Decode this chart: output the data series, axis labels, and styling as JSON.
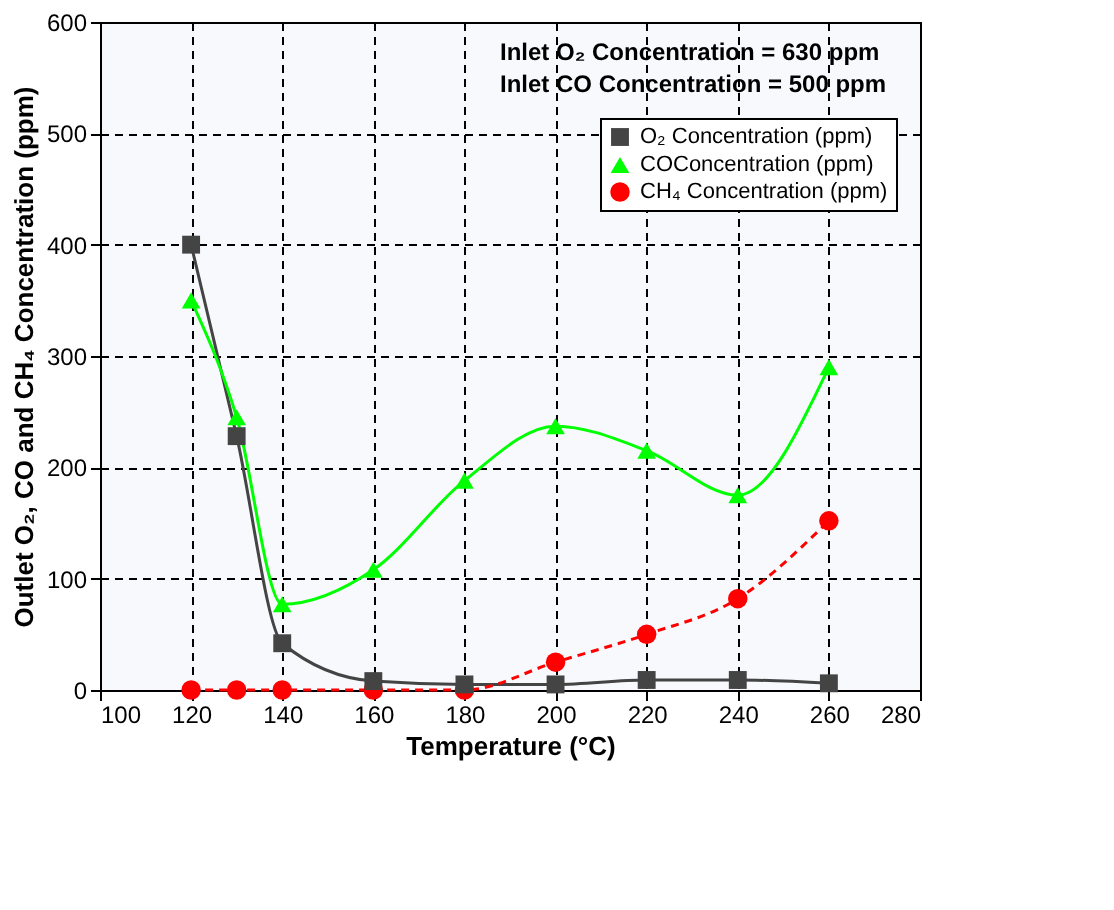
{
  "chart_data": {
    "type": "line",
    "xlabel": "Temperature (°C)",
    "ylabel": "Outlet O₂, CO and CH₄ Concentration (ppm)",
    "annotations": [
      "Inlet O₂ Concentration = 630 ppm",
      "Inlet CO Concentration = 500 ppm"
    ],
    "x": [
      120,
      130,
      140,
      160,
      180,
      200,
      220,
      240,
      260
    ],
    "series": [
      {
        "name": "O₂ Concentration (ppm)",
        "color": "#444444",
        "marker": "square",
        "line_style": "solid",
        "values": [
          400,
          228,
          42,
          8,
          5,
          5,
          9,
          9,
          6
        ]
      },
      {
        "name": "COConcentration (ppm)",
        "color": "#00ff00",
        "marker": "triangle",
        "line_style": "solid",
        "values": [
          350,
          245,
          77,
          108,
          188,
          237,
          215,
          175,
          290
        ]
      },
      {
        "name": "CH₄ Concentration (ppm)",
        "color": "#ff0000",
        "marker": "circle",
        "line_style": "dashed",
        "values": [
          0,
          0,
          0,
          0,
          0,
          25,
          50,
          82,
          152
        ]
      }
    ],
    "xlim": [
      100,
      280
    ],
    "xticks": [
      100,
      120,
      140,
      160,
      180,
      200,
      220,
      240,
      260,
      280
    ],
    "ylim": [
      0,
      600
    ],
    "yticks": [
      0,
      100,
      200,
      300,
      400,
      500,
      600
    ],
    "grid": true,
    "legend": "top right"
  }
}
